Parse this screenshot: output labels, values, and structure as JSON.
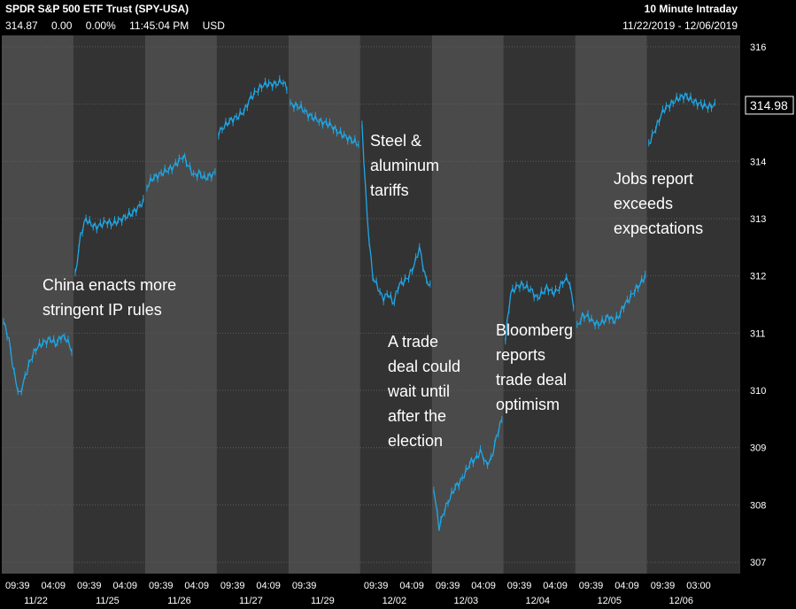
{
  "header": {
    "title": "SPDR S&P 500 ETF Trust (SPY-USA)",
    "last": "314.87",
    "change": "0.00",
    "change_pct": "0.00%",
    "time": "11:45:04 PM",
    "currency": "USD",
    "interval": "10 Minute Intraday",
    "date_range": "11/22/2019 - 12/06/2019"
  },
  "price_tag": "314.98",
  "colors": {
    "background": "#000000",
    "plot_light": "#4a4a4a",
    "plot_dark": "#333333",
    "series": "#1ea7e6",
    "text": "#ffffff"
  },
  "annotations": [
    {
      "text": "China enacts more\nstringent IP rules"
    },
    {
      "text": "Steel &\naluminum\ntariffs"
    },
    {
      "text": "A trade\ndeal could\nwait until\nafter the\nelection"
    },
    {
      "text": "Bloomberg\nreports\ntrade deal\noptimism"
    },
    {
      "text": "Jobs report\nexceeds\nexpectations"
    }
  ],
  "chart_data": {
    "type": "line",
    "title": "SPDR S&P 500 ETF Trust (SPY-USA)",
    "ylim": [
      306.8,
      316.2
    ],
    "y_ticks": [
      307,
      308,
      309,
      310,
      311,
      312,
      313,
      314,
      315,
      316
    ],
    "days": [
      {
        "date": "11/22",
        "times": [
          "09:39",
          "04:09"
        ]
      },
      {
        "date": "11/25",
        "times": [
          "09:39",
          "04:09"
        ]
      },
      {
        "date": "11/26",
        "times": [
          "09:39",
          "04:09"
        ]
      },
      {
        "date": "11/27",
        "times": [
          "09:39",
          "04:09"
        ]
      },
      {
        "date": "11/29",
        "times": [
          "09:39"
        ]
      },
      {
        "date": "12/02",
        "times": [
          "09:39",
          "04:09"
        ]
      },
      {
        "date": "12/03",
        "times": [
          "09:39",
          "04:09"
        ]
      },
      {
        "date": "12/04",
        "times": [
          "09:39",
          "04:09"
        ]
      },
      {
        "date": "12/05",
        "times": [
          "09:39",
          "04:09"
        ]
      },
      {
        "date": "12/06",
        "times": [
          "09:39",
          "03:00"
        ]
      }
    ],
    "sessions": [
      {
        "date": "11/22",
        "values": [
          311.2,
          310.9,
          310.3,
          309.9,
          310.2,
          310.5,
          310.7,
          310.8,
          310.85,
          310.9,
          310.8,
          310.95,
          310.9,
          310.7
        ]
      },
      {
        "date": "11/25",
        "values": [
          312.0,
          312.7,
          313.0,
          312.9,
          312.85,
          312.9,
          312.95,
          312.9,
          312.95,
          313.0,
          313.05,
          313.1,
          313.2,
          313.3
        ]
      },
      {
        "date": "11/26",
        "values": [
          313.55,
          313.7,
          313.75,
          313.8,
          313.85,
          313.9,
          314.0,
          314.1,
          313.9,
          313.75,
          313.8,
          313.7,
          313.75,
          313.8
        ]
      },
      {
        "date": "11/27",
        "values": [
          314.5,
          314.6,
          314.7,
          314.75,
          314.8,
          314.9,
          315.1,
          315.2,
          315.3,
          315.35,
          315.35,
          315.35,
          315.4,
          315.3
        ]
      },
      {
        "date": "11/29",
        "values": [
          315.0,
          314.95,
          314.8,
          314.7,
          314.65,
          314.5,
          314.4,
          314.3
        ]
      },
      {
        "date": "12/02",
        "values": [
          314.6,
          313.0,
          312.0,
          311.8,
          311.6,
          311.7,
          311.5,
          311.85,
          311.9,
          312.0,
          312.2,
          312.5,
          312.0,
          311.8
        ]
      },
      {
        "date": "12/03",
        "values": [
          308.3,
          307.6,
          307.9,
          308.1,
          308.3,
          308.4,
          308.55,
          308.75,
          308.8,
          308.95,
          308.7,
          308.8,
          309.2,
          309.5
        ]
      },
      {
        "date": "12/04",
        "values": [
          310.9,
          311.7,
          311.8,
          311.85,
          311.8,
          311.75,
          311.6,
          311.7,
          311.8,
          311.7,
          311.75,
          311.9,
          311.95,
          311.5
        ]
      },
      {
        "date": "12/05",
        "values": [
          311.1,
          311.3,
          311.3,
          311.2,
          311.15,
          311.2,
          311.3,
          311.2,
          311.3,
          311.5,
          311.6,
          311.75,
          311.85,
          312.0
        ]
      },
      {
        "date": "12/06",
        "values": [
          314.3,
          314.6,
          314.9,
          315.0,
          315.1,
          315.15,
          315.05,
          315.0,
          314.95,
          314.98
        ]
      }
    ]
  }
}
